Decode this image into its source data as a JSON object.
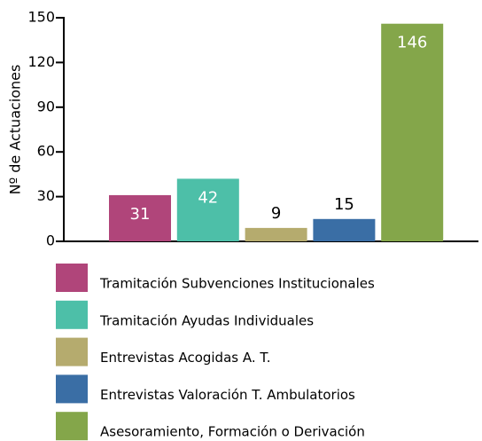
{
  "chart_data": {
    "type": "bar",
    "y_label": "Nº de Actuaciones",
    "ylim": [
      0,
      150
    ],
    "yticks": [
      0,
      30,
      60,
      90,
      120,
      150
    ],
    "series": [
      {
        "name": "Tramitación Subvenciones Institucionales",
        "color": "#b0457a",
        "values": [
          31
        ]
      },
      {
        "name": "Tramitación Ayudas Individuales",
        "color": "#4dbfa8",
        "values": [
          42
        ]
      },
      {
        "name": "Entrevistas Acogidas A. T.",
        "color": "#b5ab6e",
        "values": [
          9
        ]
      },
      {
        "name": "Entrevistas Valoración T. Ambulatorios",
        "color": "#3a6ea5",
        "values": [
          15
        ]
      },
      {
        "name": "Asesoramiento, Formación o Derivación",
        "color": "#84a64a",
        "values": [
          146
        ]
      }
    ],
    "legend": "bottom"
  }
}
